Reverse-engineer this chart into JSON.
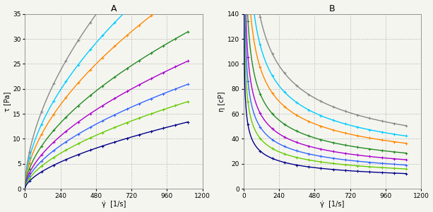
{
  "title_A": "A",
  "title_B": "B",
  "ylabel_A": "τ [Pa]",
  "ylabel_B": "η [cP]",
  "xlabel_A": "γ̇  [1/s]",
  "xlabel_B": "γ̇  [1/s]",
  "xlim": [
    0,
    1200
  ],
  "ylim_A": [
    0,
    35
  ],
  "ylim_B": [
    0,
    140
  ],
  "xticks": [
    0,
    240,
    480,
    720,
    960,
    1200
  ],
  "yticks_A": [
    0,
    5,
    10,
    15,
    20,
    25,
    30,
    35
  ],
  "yticks_B": [
    0,
    20,
    40,
    60,
    80,
    100,
    120,
    140
  ],
  "curves": [
    {
      "K": 1.1,
      "n": 0.56,
      "color": "#888888",
      "lw": 1.0
    },
    {
      "K": 0.92,
      "n": 0.56,
      "color": "#00CCFF",
      "lw": 1.0
    },
    {
      "K": 0.74,
      "n": 0.57,
      "color": "#FF8800",
      "lw": 1.0
    },
    {
      "K": 0.58,
      "n": 0.57,
      "color": "#228B22",
      "lw": 1.0
    },
    {
      "K": 0.44,
      "n": 0.58,
      "color": "#AA00CC",
      "lw": 1.0
    },
    {
      "K": 0.36,
      "n": 0.58,
      "color": "#3366FF",
      "lw": 1.0
    },
    {
      "K": 0.28,
      "n": 0.59,
      "color": "#66CC00",
      "lw": 1.0
    },
    {
      "K": 0.2,
      "n": 0.6,
      "color": "#000088",
      "lw": 1.0
    }
  ],
  "bg_color": "#f5f5f0",
  "grid_color": "#bbbbbb",
  "grid_ls": "--"
}
